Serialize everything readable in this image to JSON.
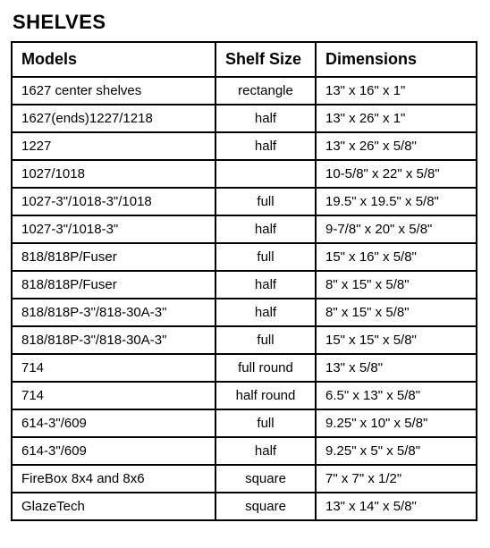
{
  "title": "SHELVES",
  "columns": [
    "Models",
    "Shelf Size",
    "Dimensions"
  ],
  "rows": [
    {
      "model": "1627 center shelves",
      "size": "rectangle",
      "dims": "13\" x 16\" x 1\""
    },
    {
      "model": "1627(ends)1227/1218",
      "size": "half",
      "dims": "13\" x 26\" x 1\""
    },
    {
      "model": "1227",
      "size": "half",
      "dims": "13\" x 26\" x 5/8\""
    },
    {
      "model": "1027/1018",
      "size": "",
      "dims": "10-5/8\" x 22\" x 5/8\""
    },
    {
      "model": "1027-3\"/1018-3\"/1018",
      "size": "full",
      "dims": "19.5\" x 19.5\" x 5/8\""
    },
    {
      "model": "1027-3\"/1018-3\"",
      "size": "half",
      "dims": "9-7/8\" x 20\" x 5/8\""
    },
    {
      "model": "818/818P/Fuser",
      "size": "full",
      "dims": "15\" x 16\" x 5/8\""
    },
    {
      "model": "818/818P/Fuser",
      "size": "half",
      "dims": "8\" x 15\" x 5/8\""
    },
    {
      "model": "818/818P-3\"/818-30A-3\"",
      "size": "half",
      "dims": "8\" x 15\" x 5/8\""
    },
    {
      "model": "818/818P-3\"/818-30A-3\"",
      "size": "full",
      "dims": "15\" x 15\" x 5/8\""
    },
    {
      "model": "714",
      "size": "full round",
      "dims": "13\" x 5/8\""
    },
    {
      "model": "714",
      "size": "half round",
      "dims": "6.5\" x 13\" x 5/8\""
    },
    {
      "model": "614-3\"/609",
      "size": "full",
      "dims": "9.25\" x 10\" x 5/8\""
    },
    {
      "model": "614-3\"/609",
      "size": "half",
      "dims": "9.25\" x 5\" x 5/8\""
    },
    {
      "model": "FireBox 8x4 and 8x6",
      "size": "square",
      "dims": "7\" x 7\" x 1/2\""
    },
    {
      "model": "GlazeTech",
      "size": "square",
      "dims": "13\" x 14\" x 5/8\""
    }
  ]
}
